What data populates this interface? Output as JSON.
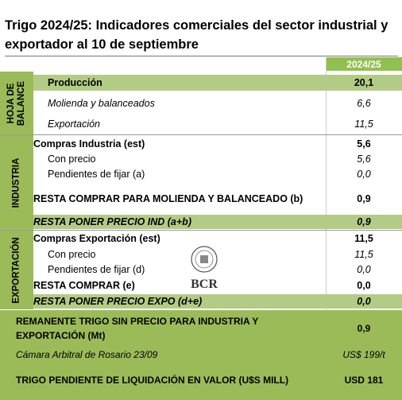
{
  "header": {
    "title": "Trigo 2024/25: Indicadores comerciales del sector industrial y exportador al 10 de septiembre"
  },
  "table": {
    "column": "2024/25",
    "sections": [
      {
        "label": "HOJA DE BALANCE",
        "rows": [
          [
            "Producción",
            "20,1"
          ],
          [
            "Molienda y balanceados",
            "6,6"
          ],
          [
            "Exportación",
            "11,5"
          ]
        ]
      },
      {
        "label": "INDUSTRIA",
        "rows": [
          [
            "Compras Industria (est)",
            "5,6"
          ],
          [
            "Con precio",
            "5,6"
          ],
          [
            "Pendientes de fijar (a)",
            "0,0"
          ],
          [
            "RESTA COMPRAR PARA MOLIENDA Y BALANCEADO (b)",
            "0,9"
          ],
          [
            "RESTA PONER PRECIO IND (a+b)",
            "0,9"
          ]
        ]
      },
      {
        "label": "EXPORTACIÓN",
        "rows": [
          [
            "Compras Exportación (est)",
            "11,5"
          ],
          [
            "Con precio",
            "11,5"
          ],
          [
            "Pendientes de fijar (d)",
            "0,0"
          ],
          [
            "RESTA COMPRAR (e)",
            "0,0"
          ],
          [
            "RESTA PONER PRECIO EXPO (d+e)",
            "0,0"
          ]
        ]
      }
    ],
    "footer": [
      [
        "REMANENTE TRIGO SIN PRECIO PARA INDUSTRIA Y EXPORTACIÓN (Mt)",
        "0,9"
      ],
      [
        "Cámara Arbitral de Rosario 23/09",
        "US$ 199/t"
      ],
      [
        "TRIGO PENDIENTE DE LIQUIDACIÓN EN VALOR (U$S MILL)",
        "USD 181"
      ]
    ]
  },
  "logo": {
    "text": "BCR"
  }
}
